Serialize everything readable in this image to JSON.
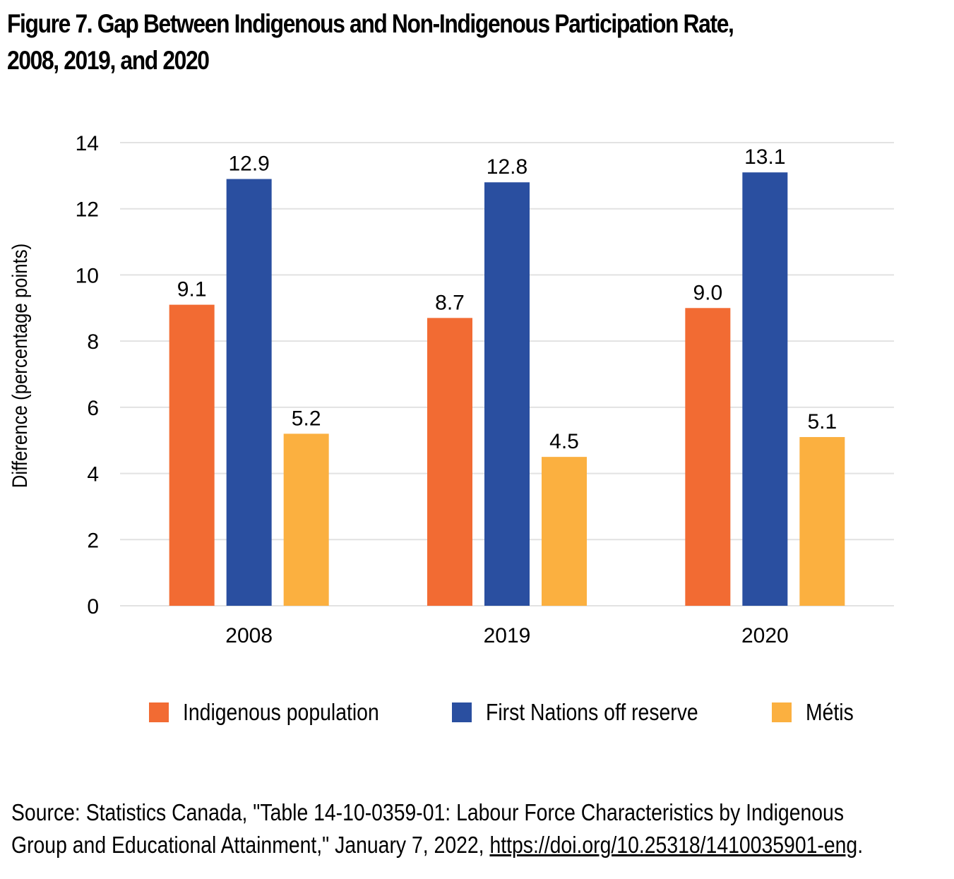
{
  "title_line1": "Figure 7. Gap Between Indigenous and Non-Indigenous Participation Rate,",
  "title_line2": "2008, 2019, and 2020",
  "source": {
    "prefix": "Source: Statistics Canada, \"Table 14-10-0359-01: Labour Force Characteristics by Indigenous",
    "line2": "Group and Educational Attainment,\" January 7, 2022, ",
    "link": "https://doi.org/10.25318/1410035901-eng",
    "suffix": "."
  },
  "chart_data": {
    "type": "bar",
    "title": "Figure 7. Gap Between Indigenous and Non-Indigenous Participation Rate, 2008, 2019, and 2020",
    "xlabel": "",
    "ylabel": "Difference (percentage points)",
    "categories": [
      "2008",
      "2019",
      "2020"
    ],
    "ylim": [
      0,
      14
    ],
    "yticks": [
      0,
      2,
      4,
      6,
      8,
      10,
      12,
      14
    ],
    "grid": true,
    "legend_position": "bottom",
    "series": [
      {
        "name": "Indigenous population",
        "color": "#f26b33",
        "values": [
          9.1,
          8.7,
          9.0
        ],
        "labels": [
          "9.1",
          "8.7",
          "9.0"
        ]
      },
      {
        "name": "First Nations off reserve",
        "color": "#2a4fa0",
        "values": [
          12.9,
          12.8,
          13.1
        ],
        "labels": [
          "12.9",
          "12.8",
          "13.1"
        ]
      },
      {
        "name": "Métis",
        "color": "#fbb040",
        "values": [
          5.2,
          4.5,
          5.1
        ],
        "labels": [
          "5.2",
          "4.5",
          "5.1"
        ]
      }
    ]
  }
}
